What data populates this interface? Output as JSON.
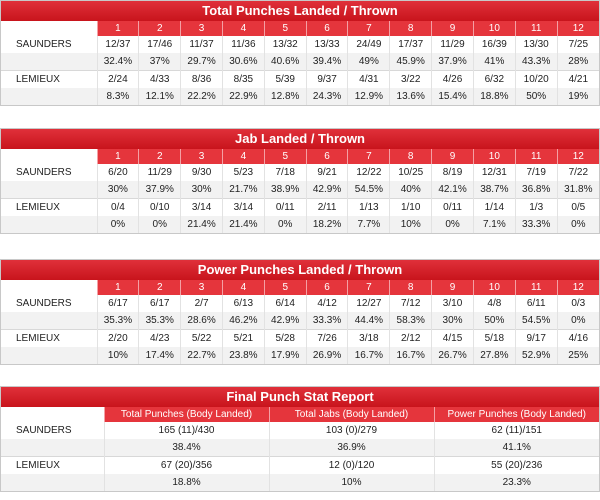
{
  "rounds": [
    "1",
    "2",
    "3",
    "4",
    "5",
    "6",
    "7",
    "8",
    "9",
    "10",
    "11",
    "12"
  ],
  "total": {
    "title": "Total Punches Landed / Thrown",
    "rows": [
      {
        "fighter": "SAUNDERS",
        "values": [
          "12/37",
          "17/46",
          "11/37",
          "11/36",
          "13/32",
          "13/33",
          "24/49",
          "17/37",
          "11/29",
          "16/39",
          "13/30",
          "7/25"
        ]
      },
      {
        "fighter": "",
        "values": [
          "32.4%",
          "37%",
          "29.7%",
          "30.6%",
          "40.6%",
          "39.4%",
          "49%",
          "45.9%",
          "37.9%",
          "41%",
          "43.3%",
          "28%"
        ]
      },
      {
        "fighter": "LEMIEUX",
        "values": [
          "2/24",
          "4/33",
          "8/36",
          "8/35",
          "5/39",
          "9/37",
          "4/31",
          "3/22",
          "4/26",
          "6/32",
          "10/20",
          "4/21"
        ]
      },
      {
        "fighter": "",
        "values": [
          "8.3%",
          "12.1%",
          "22.2%",
          "22.9%",
          "12.8%",
          "24.3%",
          "12.9%",
          "13.6%",
          "15.4%",
          "18.8%",
          "50%",
          "19%"
        ]
      }
    ]
  },
  "jab": {
    "title": "Jab Landed / Thrown",
    "rows": [
      {
        "fighter": "SAUNDERS",
        "values": [
          "6/20",
          "11/29",
          "9/30",
          "5/23",
          "7/18",
          "9/21",
          "12/22",
          "10/25",
          "8/19",
          "12/31",
          "7/19",
          "7/22"
        ]
      },
      {
        "fighter": "",
        "values": [
          "30%",
          "37.9%",
          "30%",
          "21.7%",
          "38.9%",
          "42.9%",
          "54.5%",
          "40%",
          "42.1%",
          "38.7%",
          "36.8%",
          "31.8%"
        ]
      },
      {
        "fighter": "LEMIEUX",
        "values": [
          "0/4",
          "0/10",
          "3/14",
          "3/14",
          "0/11",
          "2/11",
          "1/13",
          "1/10",
          "0/11",
          "1/14",
          "1/3",
          "0/5"
        ]
      },
      {
        "fighter": "",
        "values": [
          "0%",
          "0%",
          "21.4%",
          "21.4%",
          "0%",
          "18.2%",
          "7.7%",
          "10%",
          "0%",
          "7.1%",
          "33.3%",
          "0%"
        ]
      }
    ]
  },
  "power": {
    "title": "Power Punches Landed / Thrown",
    "rows": [
      {
        "fighter": "SAUNDERS",
        "values": [
          "6/17",
          "6/17",
          "2/7",
          "6/13",
          "6/14",
          "4/12",
          "12/27",
          "7/12",
          "3/10",
          "4/8",
          "6/11",
          "0/3"
        ]
      },
      {
        "fighter": "",
        "values": [
          "35.3%",
          "35.3%",
          "28.6%",
          "46.2%",
          "42.9%",
          "33.3%",
          "44.4%",
          "58.3%",
          "30%",
          "50%",
          "54.5%",
          "0%"
        ]
      },
      {
        "fighter": "LEMIEUX",
        "values": [
          "2/20",
          "4/23",
          "5/22",
          "5/21",
          "5/28",
          "7/26",
          "3/18",
          "2/12",
          "4/15",
          "5/18",
          "9/17",
          "4/16"
        ]
      },
      {
        "fighter": "",
        "values": [
          "10%",
          "17.4%",
          "22.7%",
          "23.8%",
          "17.9%",
          "26.9%",
          "16.7%",
          "16.7%",
          "26.7%",
          "27.8%",
          "52.9%",
          "25%"
        ]
      }
    ]
  },
  "final": {
    "title": "Final Punch Stat Report",
    "headers": [
      "Total Punches (Body Landed)",
      "Total Jabs (Body Landed)",
      "Power Punches (Body Landed)"
    ],
    "rows": [
      {
        "fighter": "SAUNDERS",
        "values": [
          "165 (11)/430",
          "103 (0)/279",
          "62 (11)/151"
        ]
      },
      {
        "fighter": "",
        "values": [
          "38.4%",
          "36.9%",
          "41.1%"
        ]
      },
      {
        "fighter": "LEMIEUX",
        "values": [
          "67 (20)/356",
          "12 (0)/120",
          "55 (20)/236"
        ]
      },
      {
        "fighter": "",
        "values": [
          "18.8%",
          "10%",
          "23.3%"
        ]
      }
    ]
  }
}
